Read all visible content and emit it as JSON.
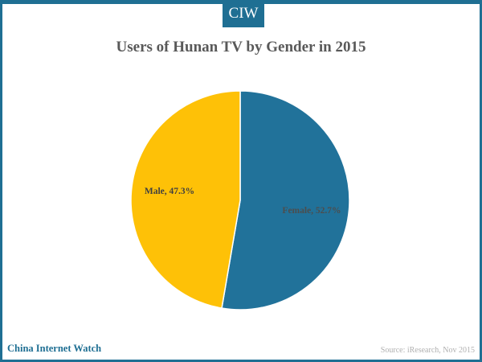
{
  "header": {
    "logo_text": "CIW"
  },
  "chart_data": {
    "type": "pie",
    "title": "Users of Hunan TV by Gender in 2015",
    "slices": [
      {
        "label": "Female, 52.7%",
        "value": 52.7,
        "color": "#21729a",
        "label_color": "#4d4d4d"
      },
      {
        "label": "Male, 47.3%",
        "value": 47.3,
        "color": "#fec107",
        "label_color": "#404040"
      }
    ]
  },
  "footer": {
    "brand": "China Internet Watch",
    "source": "Source: iResearch, Nov 2015"
  },
  "colors": {
    "brand": "#1f6f93"
  }
}
